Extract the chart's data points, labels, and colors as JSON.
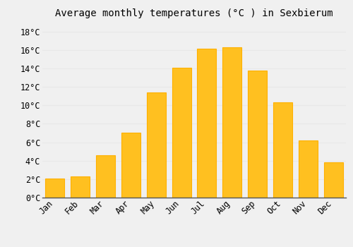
{
  "title": "Average monthly temperatures (°C ) in Sexbierum",
  "months": [
    "Jan",
    "Feb",
    "Mar",
    "Apr",
    "May",
    "Jun",
    "Jul",
    "Aug",
    "Sep",
    "Oct",
    "Nov",
    "Dec"
  ],
  "temperatures": [
    2.1,
    2.3,
    4.6,
    7.0,
    11.4,
    14.1,
    16.1,
    16.3,
    13.8,
    10.3,
    6.2,
    3.8
  ],
  "bar_color_top": "#FFC020",
  "bar_color_bottom": "#FFB000",
  "background_color": "#F0F0F0",
  "grid_color": "#E8E8E8",
  "ylim": [
    0,
    19
  ],
  "yticks": [
    0,
    2,
    4,
    6,
    8,
    10,
    12,
    14,
    16,
    18
  ],
  "title_fontsize": 10,
  "tick_fontsize": 8.5,
  "title_font": "monospace",
  "tick_font": "monospace"
}
